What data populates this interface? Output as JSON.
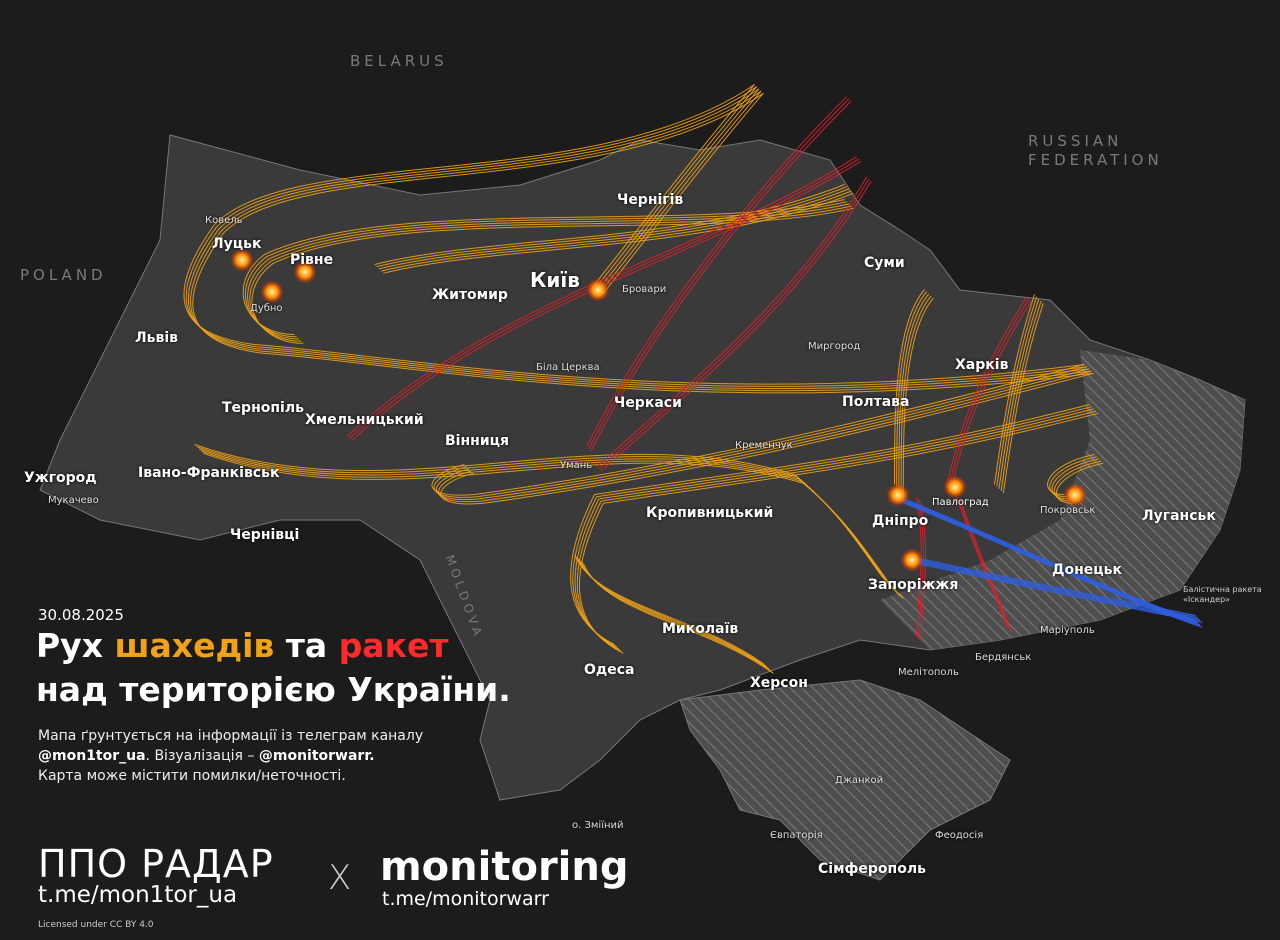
{
  "date": "30.08.2025",
  "title": {
    "part1": "Рух ",
    "shaheds": "шахедів",
    "part2": " та ",
    "missiles": "ракет",
    "line2": "над територією України."
  },
  "description": {
    "line1": "Мапа ґрунтується на інформації із телеграм каналу",
    "handle1": "@mon1tor_ua",
    "mid": ". Візуалізація – ",
    "handle2": "@monitorwarr.",
    "line3": "Карта може містити помилки/неточності."
  },
  "footer": {
    "brand1": "ППО РАДАР",
    "link1": "t.me/mon1tor_ua",
    "separator": "X",
    "brand2": "monitoring",
    "link2": "t.me/monitorwarr",
    "license": "Licensed under CC BY 4.0"
  },
  "legend": {
    "ballistic_line1": "Балістична ракета",
    "ballistic_line2": "«Іскандер»"
  },
  "countries": {
    "belarus": "BELARUS",
    "poland": "POLAND",
    "russia1": "RUSSIAN",
    "russia2": "FEDERATION",
    "moldova": "MOLDOVA"
  },
  "cities": {
    "lutsk": "Луцьк",
    "rivne": "Рівне",
    "dubno": "Дубно",
    "kyiv": "Київ",
    "zhytomyr": "Житомир",
    "chernihiv": "Чернігів",
    "sumy": "Суми",
    "lviv": "Львів",
    "ternopil": "Тернопіль",
    "khmelnytskyi": "Хмельницький",
    "vinnytsia": "Вінниця",
    "cherkasy": "Черкаси",
    "poltava": "Полтава",
    "kharkiv": "Харків",
    "uzhhorod": "Ужгород",
    "mukachevo": "Мукачево",
    "ivano_frankivsk": "Івано-Франківськ",
    "chernivtsi": "Чернівці",
    "kropyvnytskyi": "Кропивницький",
    "dnipro": "Дніпро",
    "pavlohrad": "Павлоград",
    "zaporizhzhia": "Запоріжжя",
    "donetsk": "Донецьк",
    "luhansk": "Луганськ",
    "mykolaiv": "Миколаїв",
    "odesa": "Одеса",
    "kherson": "Херсон",
    "simferopol": "Сімферополь",
    "bila_tserkva": "Біла Церква",
    "uman": "Умань",
    "poltava_small": "Миргород",
    "kremenchuk": "Кременчук",
    "melitopol": "Мелітополь",
    "berdiansk": "Бердянськ",
    "mariupol": "Маріуполь",
    "pokrovsk": "Покровськ",
    "zmiinyi": "о. Зміїний",
    "dzhankoi": "Джанкой",
    "yevpatoria": "Євпаторія",
    "feodosia": "Феодосія",
    "kovel": "Ковель",
    "brovary": "Бровари"
  },
  "colors": {
    "background": "#1c1c1c",
    "land": "#3a3a3a",
    "occupied": "#555555",
    "shahed_route": "#f0a316",
    "missile_route": "#e0202a",
    "ballistic_route": "#2f5fe0",
    "explosion": "#ff6a00"
  }
}
